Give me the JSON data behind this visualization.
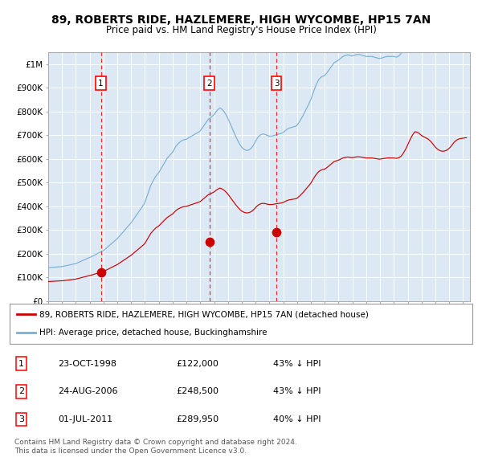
{
  "title": "89, ROBERTS RIDE, HAZLEMERE, HIGH WYCOMBE, HP15 7AN",
  "subtitle": "Price paid vs. HM Land Registry's House Price Index (HPI)",
  "plot_bg_color": "#dce9f5",
  "red_line_color": "#cc0000",
  "blue_line_color": "#7aafd4",
  "sale_points": [
    {
      "date_num": 1998.81,
      "price": 122000,
      "label": "1"
    },
    {
      "date_num": 2006.65,
      "price": 248500,
      "label": "2"
    },
    {
      "date_num": 2011.5,
      "price": 289950,
      "label": "3"
    }
  ],
  "vline_dates": [
    1998.81,
    2006.65,
    2011.5
  ],
  "table_data": [
    [
      "1",
      "23-OCT-1998",
      "£122,000",
      "43% ↓ HPI"
    ],
    [
      "2",
      "24-AUG-2006",
      "£248,500",
      "43% ↓ HPI"
    ],
    [
      "3",
      "01-JUL-2011",
      "£289,950",
      "40% ↓ HPI"
    ]
  ],
  "legend_entries": [
    {
      "color": "#cc0000",
      "label": "89, ROBERTS RIDE, HAZLEMERE, HIGH WYCOMBE, HP15 7AN (detached house)"
    },
    {
      "color": "#7aafd4",
      "label": "HPI: Average price, detached house, Buckinghamshire"
    }
  ],
  "footer_text": "Contains HM Land Registry data © Crown copyright and database right 2024.\nThis data is licensed under the Open Government Licence v3.0.",
  "ylim": [
    0,
    1050000
  ],
  "xlim_start": 1995.0,
  "xlim_end": 2025.5,
  "yticks": [
    0,
    100000,
    200000,
    300000,
    400000,
    500000,
    600000,
    700000,
    800000,
    900000,
    1000000
  ],
  "ytick_labels": [
    "£0",
    "£100K",
    "£200K",
    "£300K",
    "£400K",
    "£500K",
    "£600K",
    "£700K",
    "£800K",
    "£900K",
    "£1M"
  ],
  "hpi_index_data": [
    [
      1995.0,
      100.0
    ],
    [
      1995.083,
      100.5
    ],
    [
      1995.167,
      101.0
    ],
    [
      1995.25,
      101.2
    ],
    [
      1995.333,
      101.5
    ],
    [
      1995.417,
      101.8
    ],
    [
      1995.5,
      102.0
    ],
    [
      1995.583,
      102.3
    ],
    [
      1995.667,
      102.5
    ],
    [
      1995.75,
      102.8
    ],
    [
      1995.833,
      103.0
    ],
    [
      1995.917,
      103.3
    ],
    [
      1996.0,
      103.8
    ],
    [
      1996.083,
      104.5
    ],
    [
      1996.167,
      105.2
    ],
    [
      1996.25,
      106.0
    ],
    [
      1996.333,
      106.8
    ],
    [
      1996.417,
      107.5
    ],
    [
      1996.5,
      108.3
    ],
    [
      1996.583,
      109.0
    ],
    [
      1996.667,
      109.8
    ],
    [
      1996.75,
      110.5
    ],
    [
      1996.833,
      111.3
    ],
    [
      1996.917,
      112.0
    ],
    [
      1997.0,
      113.0
    ],
    [
      1997.083,
      114.5
    ],
    [
      1997.167,
      116.0
    ],
    [
      1997.25,
      117.5
    ],
    [
      1997.333,
      119.0
    ],
    [
      1997.417,
      120.5
    ],
    [
      1997.5,
      122.0
    ],
    [
      1997.583,
      123.5
    ],
    [
      1997.667,
      125.0
    ],
    [
      1997.75,
      126.5
    ],
    [
      1997.833,
      128.0
    ],
    [
      1997.917,
      129.5
    ],
    [
      1998.0,
      131.0
    ],
    [
      1998.083,
      132.8
    ],
    [
      1998.167,
      134.6
    ],
    [
      1998.25,
      136.4
    ],
    [
      1998.333,
      138.2
    ],
    [
      1998.417,
      140.0
    ],
    [
      1998.5,
      141.8
    ],
    [
      1998.583,
      143.6
    ],
    [
      1998.667,
      145.4
    ],
    [
      1998.75,
      147.2
    ],
    [
      1998.833,
      149.0
    ],
    [
      1998.917,
      150.5
    ],
    [
      1999.0,
      152.0
    ],
    [
      1999.083,
      155.0
    ],
    [
      1999.167,
      158.0
    ],
    [
      1999.25,
      161.0
    ],
    [
      1999.333,
      164.0
    ],
    [
      1999.417,
      167.0
    ],
    [
      1999.5,
      170.0
    ],
    [
      1999.583,
      173.0
    ],
    [
      1999.667,
      176.0
    ],
    [
      1999.75,
      179.0
    ],
    [
      1999.833,
      182.0
    ],
    [
      1999.917,
      185.0
    ],
    [
      2000.0,
      188.0
    ],
    [
      2000.083,
      192.0
    ],
    [
      2000.167,
      196.0
    ],
    [
      2000.25,
      200.0
    ],
    [
      2000.333,
      204.0
    ],
    [
      2000.417,
      208.0
    ],
    [
      2000.5,
      212.0
    ],
    [
      2000.583,
      216.0
    ],
    [
      2000.667,
      220.0
    ],
    [
      2000.75,
      224.0
    ],
    [
      2000.833,
      228.0
    ],
    [
      2000.917,
      232.0
    ],
    [
      2001.0,
      236.0
    ],
    [
      2001.083,
      241.0
    ],
    [
      2001.167,
      246.0
    ],
    [
      2001.25,
      251.0
    ],
    [
      2001.333,
      256.0
    ],
    [
      2001.417,
      261.0
    ],
    [
      2001.5,
      266.0
    ],
    [
      2001.583,
      271.0
    ],
    [
      2001.667,
      276.0
    ],
    [
      2001.75,
      281.0
    ],
    [
      2001.833,
      286.0
    ],
    [
      2001.917,
      291.0
    ],
    [
      2002.0,
      298.0
    ],
    [
      2002.083,
      308.0
    ],
    [
      2002.167,
      318.0
    ],
    [
      2002.25,
      328.0
    ],
    [
      2002.333,
      338.0
    ],
    [
      2002.417,
      348.0
    ],
    [
      2002.5,
      355.0
    ],
    [
      2002.583,
      362.0
    ],
    [
      2002.667,
      368.0
    ],
    [
      2002.75,
      374.0
    ],
    [
      2002.833,
      379.0
    ],
    [
      2002.917,
      383.0
    ],
    [
      2003.0,
      387.0
    ],
    [
      2003.083,
      393.0
    ],
    [
      2003.167,
      399.0
    ],
    [
      2003.25,
      405.0
    ],
    [
      2003.333,
      411.0
    ],
    [
      2003.417,
      417.0
    ],
    [
      2003.5,
      423.0
    ],
    [
      2003.583,
      429.0
    ],
    [
      2003.667,
      433.0
    ],
    [
      2003.75,
      437.0
    ],
    [
      2003.833,
      441.0
    ],
    [
      2003.917,
      445.0
    ],
    [
      2004.0,
      449.0
    ],
    [
      2004.083,
      455.0
    ],
    [
      2004.167,
      461.0
    ],
    [
      2004.25,
      467.0
    ],
    [
      2004.333,
      471.0
    ],
    [
      2004.417,
      475.0
    ],
    [
      2004.5,
      478.0
    ],
    [
      2004.583,
      481.0
    ],
    [
      2004.667,
      483.0
    ],
    [
      2004.75,
      485.0
    ],
    [
      2004.833,
      486.0
    ],
    [
      2004.917,
      487.0
    ],
    [
      2005.0,
      488.0
    ],
    [
      2005.083,
      490.0
    ],
    [
      2005.167,
      492.0
    ],
    [
      2005.25,
      494.0
    ],
    [
      2005.333,
      496.0
    ],
    [
      2005.417,
      498.0
    ],
    [
      2005.5,
      500.0
    ],
    [
      2005.583,
      502.0
    ],
    [
      2005.667,
      504.0
    ],
    [
      2005.75,
      506.0
    ],
    [
      2005.833,
      508.0
    ],
    [
      2005.917,
      510.0
    ],
    [
      2006.0,
      513.0
    ],
    [
      2006.083,
      518.0
    ],
    [
      2006.167,
      523.0
    ],
    [
      2006.25,
      528.0
    ],
    [
      2006.333,
      533.0
    ],
    [
      2006.417,
      538.0
    ],
    [
      2006.5,
      543.0
    ],
    [
      2006.583,
      548.0
    ],
    [
      2006.667,
      550.0
    ],
    [
      2006.75,
      553.0
    ],
    [
      2006.833,
      556.0
    ],
    [
      2006.917,
      559.0
    ],
    [
      2007.0,
      562.0
    ],
    [
      2007.083,
      567.0
    ],
    [
      2007.167,
      572.0
    ],
    [
      2007.25,
      576.0
    ],
    [
      2007.333,
      579.0
    ],
    [
      2007.417,
      582.0
    ],
    [
      2007.5,
      580.0
    ],
    [
      2007.583,
      577.0
    ],
    [
      2007.667,
      573.0
    ],
    [
      2007.75,
      569.0
    ],
    [
      2007.833,
      563.0
    ],
    [
      2007.917,
      557.0
    ],
    [
      2008.0,
      550.0
    ],
    [
      2008.083,
      542.0
    ],
    [
      2008.167,
      534.0
    ],
    [
      2008.25,
      526.0
    ],
    [
      2008.333,
      518.0
    ],
    [
      2008.417,
      510.0
    ],
    [
      2008.5,
      502.0
    ],
    [
      2008.583,
      494.0
    ],
    [
      2008.667,
      487.0
    ],
    [
      2008.75,
      480.0
    ],
    [
      2008.833,
      474.0
    ],
    [
      2008.917,
      468.0
    ],
    [
      2009.0,
      463.0
    ],
    [
      2009.083,
      460.0
    ],
    [
      2009.167,
      457.0
    ],
    [
      2009.25,
      455.0
    ],
    [
      2009.333,
      454.0
    ],
    [
      2009.417,
      454.0
    ],
    [
      2009.5,
      455.0
    ],
    [
      2009.583,
      457.0
    ],
    [
      2009.667,
      460.0
    ],
    [
      2009.75,
      464.0
    ],
    [
      2009.833,
      469.0
    ],
    [
      2009.917,
      475.0
    ],
    [
      2010.0,
      482.0
    ],
    [
      2010.083,
      488.0
    ],
    [
      2010.167,
      493.0
    ],
    [
      2010.25,
      497.0
    ],
    [
      2010.333,
      500.0
    ],
    [
      2010.417,
      502.0
    ],
    [
      2010.5,
      503.0
    ],
    [
      2010.583,
      503.0
    ],
    [
      2010.667,
      502.0
    ],
    [
      2010.75,
      501.0
    ],
    [
      2010.833,
      499.0
    ],
    [
      2010.917,
      498.0
    ],
    [
      2011.0,
      497.0
    ],
    [
      2011.083,
      497.0
    ],
    [
      2011.167,
      497.0
    ],
    [
      2011.25,
      498.0
    ],
    [
      2011.333,
      499.0
    ],
    [
      2011.417,
      500.0
    ],
    [
      2011.5,
      501.0
    ],
    [
      2011.583,
      502.0
    ],
    [
      2011.667,
      503.0
    ],
    [
      2011.75,
      504.0
    ],
    [
      2011.833,
      505.0
    ],
    [
      2011.917,
      506.0
    ],
    [
      2012.0,
      508.0
    ],
    [
      2012.083,
      511.0
    ],
    [
      2012.167,
      514.0
    ],
    [
      2012.25,
      517.0
    ],
    [
      2012.333,
      519.0
    ],
    [
      2012.417,
      521.0
    ],
    [
      2012.5,
      522.0
    ],
    [
      2012.583,
      523.0
    ],
    [
      2012.667,
      524.0
    ],
    [
      2012.75,
      525.0
    ],
    [
      2012.833,
      526.0
    ],
    [
      2012.917,
      527.0
    ],
    [
      2013.0,
      530.0
    ],
    [
      2013.083,
      535.0
    ],
    [
      2013.167,
      540.0
    ],
    [
      2013.25,
      546.0
    ],
    [
      2013.333,
      552.0
    ],
    [
      2013.417,
      558.0
    ],
    [
      2013.5,
      565.0
    ],
    [
      2013.583,
      572.0
    ],
    [
      2013.667,
      579.0
    ],
    [
      2013.75,
      586.0
    ],
    [
      2013.833,
      593.0
    ],
    [
      2013.917,
      600.0
    ],
    [
      2014.0,
      608.0
    ],
    [
      2014.083,
      618.0
    ],
    [
      2014.167,
      628.0
    ],
    [
      2014.25,
      638.0
    ],
    [
      2014.333,
      647.0
    ],
    [
      2014.417,
      655.0
    ],
    [
      2014.5,
      662.0
    ],
    [
      2014.583,
      668.0
    ],
    [
      2014.667,
      672.0
    ],
    [
      2014.75,
      675.0
    ],
    [
      2014.833,
      677.0
    ],
    [
      2014.917,
      678.0
    ],
    [
      2015.0,
      680.0
    ],
    [
      2015.083,
      684.0
    ],
    [
      2015.167,
      688.0
    ],
    [
      2015.25,
      693.0
    ],
    [
      2015.333,
      698.0
    ],
    [
      2015.417,
      703.0
    ],
    [
      2015.5,
      708.0
    ],
    [
      2015.583,
      713.0
    ],
    [
      2015.667,
      718.0
    ],
    [
      2015.75,
      720.0
    ],
    [
      2015.833,
      722.0
    ],
    [
      2015.917,
      724.0
    ],
    [
      2016.0,
      726.0
    ],
    [
      2016.083,
      729.0
    ],
    [
      2016.167,
      732.0
    ],
    [
      2016.25,
      735.0
    ],
    [
      2016.333,
      737.0
    ],
    [
      2016.417,
      739.0
    ],
    [
      2016.5,
      740.0
    ],
    [
      2016.583,
      741.0
    ],
    [
      2016.667,
      742.0
    ],
    [
      2016.75,
      741.0
    ],
    [
      2016.833,
      740.0
    ],
    [
      2016.917,
      739.0
    ],
    [
      2017.0,
      739.0
    ],
    [
      2017.083,
      740.0
    ],
    [
      2017.167,
      741.0
    ],
    [
      2017.25,
      742.0
    ],
    [
      2017.333,
      743.0
    ],
    [
      2017.417,
      743.0
    ],
    [
      2017.5,
      743.0
    ],
    [
      2017.583,
      742.0
    ],
    [
      2017.667,
      741.0
    ],
    [
      2017.75,
      740.0
    ],
    [
      2017.833,
      739.0
    ],
    [
      2017.917,
      738.0
    ],
    [
      2018.0,
      737.0
    ],
    [
      2018.083,
      737.0
    ],
    [
      2018.167,
      737.0
    ],
    [
      2018.25,
      737.0
    ],
    [
      2018.333,
      737.0
    ],
    [
      2018.417,
      737.0
    ],
    [
      2018.5,
      736.0
    ],
    [
      2018.583,
      735.0
    ],
    [
      2018.667,
      734.0
    ],
    [
      2018.75,
      733.0
    ],
    [
      2018.833,
      732.0
    ],
    [
      2018.917,
      731.0
    ],
    [
      2019.0,
      731.0
    ],
    [
      2019.083,
      732.0
    ],
    [
      2019.167,
      733.0
    ],
    [
      2019.25,
      734.0
    ],
    [
      2019.333,
      735.0
    ],
    [
      2019.417,
      736.0
    ],
    [
      2019.5,
      737.0
    ],
    [
      2019.583,
      737.0
    ],
    [
      2019.667,
      737.0
    ],
    [
      2019.75,
      737.0
    ],
    [
      2019.833,
      737.0
    ],
    [
      2019.917,
      737.0
    ],
    [
      2020.0,
      737.0
    ],
    [
      2020.083,
      736.0
    ],
    [
      2020.167,
      735.0
    ],
    [
      2020.25,
      736.0
    ],
    [
      2020.333,
      738.0
    ],
    [
      2020.417,
      741.0
    ],
    [
      2020.5,
      745.0
    ],
    [
      2020.583,
      752.0
    ],
    [
      2020.667,
      760.0
    ],
    [
      2020.75,
      770.0
    ],
    [
      2020.833,
      780.0
    ],
    [
      2020.917,
      792.0
    ],
    [
      2021.0,
      805.0
    ],
    [
      2021.083,
      818.0
    ],
    [
      2021.167,
      831.0
    ],
    [
      2021.25,
      843.0
    ],
    [
      2021.333,
      854.0
    ],
    [
      2021.417,
      863.0
    ],
    [
      2021.5,
      871.0
    ],
    [
      2021.583,
      872.0
    ],
    [
      2021.667,
      870.0
    ],
    [
      2021.75,
      867.0
    ],
    [
      2021.833,
      863.0
    ],
    [
      2021.917,
      858.0
    ],
    [
      2022.0,
      853.0
    ],
    [
      2022.083,
      849.0
    ],
    [
      2022.167,
      846.0
    ],
    [
      2022.25,
      843.0
    ],
    [
      2022.333,
      840.0
    ],
    [
      2022.417,
      837.0
    ],
    [
      2022.5,
      833.0
    ],
    [
      2022.583,
      828.0
    ],
    [
      2022.667,
      822.0
    ],
    [
      2022.75,
      815.0
    ],
    [
      2022.833,
      808.0
    ],
    [
      2022.917,
      800.0
    ],
    [
      2023.0,
      793.0
    ],
    [
      2023.083,
      787.0
    ],
    [
      2023.167,
      782.0
    ],
    [
      2023.25,
      778.0
    ],
    [
      2023.333,
      775.0
    ],
    [
      2023.417,
      773.0
    ],
    [
      2023.5,
      772.0
    ],
    [
      2023.583,
      772.0
    ],
    [
      2023.667,
      773.0
    ],
    [
      2023.75,
      775.0
    ],
    [
      2023.833,
      778.0
    ],
    [
      2023.917,
      782.0
    ],
    [
      2024.0,
      787.0
    ],
    [
      2024.083,
      793.0
    ],
    [
      2024.167,
      800.0
    ],
    [
      2024.25,
      808.0
    ],
    [
      2024.333,
      816.0
    ],
    [
      2024.417,
      822.0
    ],
    [
      2024.5,
      827.0
    ],
    [
      2024.583,
      831.0
    ],
    [
      2024.667,
      834.0
    ],
    [
      2024.75,
      836.0
    ],
    [
      2024.833,
      837.0
    ],
    [
      2024.917,
      838.0
    ],
    [
      2025.0,
      839.0
    ],
    [
      2025.083,
      840.0
    ],
    [
      2025.167,
      841.0
    ],
    [
      2025.25,
      841.5
    ]
  ]
}
